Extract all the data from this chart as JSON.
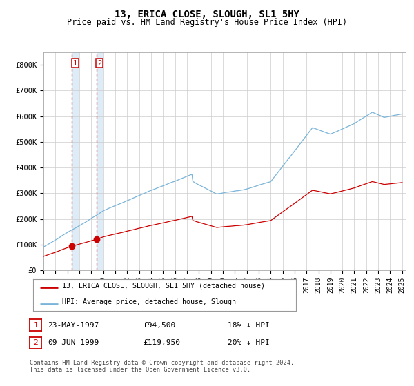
{
  "title": "13, ERICA CLOSE, SLOUGH, SL1 5HY",
  "subtitle": "Price paid vs. HM Land Registry's House Price Index (HPI)",
  "ylim": [
    0,
    850000
  ],
  "yticks": [
    0,
    100000,
    200000,
    300000,
    400000,
    500000,
    600000,
    700000,
    800000
  ],
  "ytick_labels": [
    "£0",
    "£100K",
    "£200K",
    "£300K",
    "£400K",
    "£500K",
    "£600K",
    "£700K",
    "£800K"
  ],
  "hpi_color": "#7ab4d8",
  "price_color": "#cc0000",
  "sale1_date": 1997.38,
  "sale1_price": 94500,
  "sale2_date": 1999.44,
  "sale2_price": 119950,
  "vline_color": "#cc0000",
  "shade_color": "#daeaf5",
  "legend_label1": "13, ERICA CLOSE, SLOUGH, SL1 5HY (detached house)",
  "legend_label2": "HPI: Average price, detached house, Slough",
  "table_row1": [
    "1",
    "23-MAY-1997",
    "£94,500",
    "18% ↓ HPI"
  ],
  "table_row2": [
    "2",
    "09-JUN-1999",
    "£119,950",
    "20% ↓ HPI"
  ],
  "footer": "Contains HM Land Registry data © Crown copyright and database right 2024.\nThis data is licensed under the Open Government Licence v3.0.",
  "bg_color": "#ffffff",
  "grid_color": "#cccccc",
  "title_fontsize": 10,
  "subtitle_fontsize": 8.5,
  "tick_fontsize": 7.5
}
